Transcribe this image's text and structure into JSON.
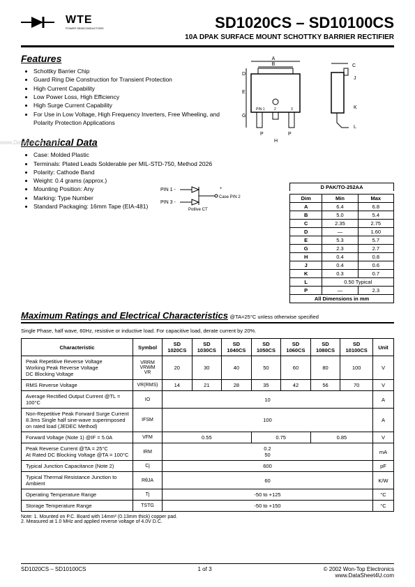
{
  "logo": {
    "brand": "WTE",
    "tagline": "POWER SEMICONDUCTORS"
  },
  "title": "SD1020CS – SD10100CS",
  "subtitle": "10A DPAK SURFACE MOUNT SCHOTTKY BARRIER RECTIFIER",
  "features": {
    "heading": "Features",
    "items": [
      "Schottky Barrier Chip",
      "Guard Ring Die Construction for Transient Protection",
      "High Current Capability",
      "Low Power Loss, High Efficiency",
      "High Surge Current Capability",
      "For Use in Low Voltage, High Frequency Inverters, Free Wheeling, and Polarity Protection Applications"
    ]
  },
  "mechanical": {
    "heading": "Mechanical Data",
    "items": [
      "Case: Molded Plastic",
      "Terminals: Plated Leads Solderable per MIL-STD-750, Method 2026",
      "Polarity: Cathode Band",
      "Weight: 0.4 grams (approx.)",
      "Mounting Position: Any",
      "Marking: Type Number",
      "Standard Packaging: 16mm Tape (EIA-481)"
    ]
  },
  "pin_schematic": {
    "pin1": "PIN 1 -",
    "pin3": "PIN 3 -",
    "pin2": "Case PIN 2",
    "label": "Potlive CT",
    "plus": "+"
  },
  "dim_table": {
    "caption": "D PAK/TO-252AA",
    "headers": [
      "Dim",
      "Min",
      "Max"
    ],
    "rows": [
      [
        "A",
        "6.4",
        "6.8"
      ],
      [
        "B",
        "5.0",
        "5.4"
      ],
      [
        "C",
        "2.35",
        "2.75"
      ],
      [
        "D",
        "—",
        "1.60"
      ],
      [
        "E",
        "5.3",
        "5.7"
      ],
      [
        "G",
        "2.3",
        "2.7"
      ],
      [
        "H",
        "0.4",
        "0.8"
      ],
      [
        "J",
        "0.4",
        "0.6"
      ],
      [
        "K",
        "0.3",
        "0.7"
      ]
    ],
    "l_row": [
      "L",
      "0.50 Typical"
    ],
    "p_row": [
      "P",
      "—",
      "2.3"
    ],
    "footer": "All Dimensions in mm"
  },
  "package_labels": [
    "A",
    "B",
    "C",
    "D",
    "E",
    "G",
    "H",
    "J",
    "K",
    "L",
    "P",
    "PIN 1",
    "2",
    "3"
  ],
  "char_section": {
    "heading": "Maximum Ratings and Electrical Characteristics",
    "condition": "@TA=25°C unless otherwise specified",
    "note": "Single Phase, half wave, 60Hz, resistive or inductive load. For capacitive load, derate current by 20%.",
    "col_headers": [
      "Characteristic",
      "Symbol",
      "SD 1020CS",
      "SD 1030CS",
      "SD 1040CS",
      "SD 1050CS",
      "SD 1060CS",
      "SD 1080CS",
      "SD 10100CS",
      "Unit"
    ],
    "rows": [
      {
        "desc": "Peak Repetitive Reverse Voltage\nWorking Peak Reverse Voltage\nDC Blocking Voltage",
        "sym": "VRRM\nVRWM\nVR",
        "vals": [
          "20",
          "30",
          "40",
          "50",
          "60",
          "80",
          "100"
        ],
        "unit": "V"
      },
      {
        "desc": "RMS Reverse Voltage",
        "sym": "VR(RMS)",
        "vals": [
          "14",
          "21",
          "28",
          "35",
          "42",
          "56",
          "70"
        ],
        "unit": "V"
      },
      {
        "desc": "Average Rectified Output Current     @TL = 100°C",
        "sym": "IO",
        "span": "10",
        "unit": "A"
      },
      {
        "desc": "Non-Repetitive Peak Forward Surge Current 8.3ms Single half sine-wave superimposed on rated load (JEDEC Method)",
        "sym": "IFSM",
        "span": "100",
        "unit": "A"
      },
      {
        "desc": "Forward Voltage (Note 1)           @IF = 5.0A",
        "sym": "VFM",
        "groups": [
          {
            "span": 3,
            "val": "0.55"
          },
          {
            "span": 2,
            "val": "0.75"
          },
          {
            "span": 2,
            "val": "0.85"
          }
        ],
        "unit": "V"
      },
      {
        "desc": "Peak Reverse Current            @TA = 25°C\nAt Rated DC Blocking Voltage    @TA = 100°C",
        "sym": "IRM",
        "stacked": [
          "0.2",
          "50"
        ],
        "unit": "mA"
      },
      {
        "desc": "Typical Junction Capacitance (Note 2)",
        "sym": "Cj",
        "span": "600",
        "unit": "pF"
      },
      {
        "desc": "Typical Thermal Resistance Junction to Ambient",
        "sym": "RθJA",
        "span": "60",
        "unit": "K/W"
      },
      {
        "desc": "Operating Temperature Range",
        "sym": "Tj",
        "span": "-50 to +125",
        "unit": "°C"
      },
      {
        "desc": "Storage Temperature Range",
        "sym": "TSTG",
        "span": "-50 to +150",
        "unit": "°C"
      }
    ]
  },
  "notes": [
    "Note:  1. Mounted on P.C. Board with 14mm² (0.13mm thick) copper pad.",
    "           2. Measured at 1.0 MHz and applied reverse voltage of 4.0V D.C."
  ],
  "footer": {
    "left": "SD1020CS – SD10100CS",
    "center": "1 of 3",
    "right1": "© 2002 Won-Top Electronics",
    "right2": "www.DataSheet4U.com"
  },
  "watermark": "www.DataSheet4U.com"
}
